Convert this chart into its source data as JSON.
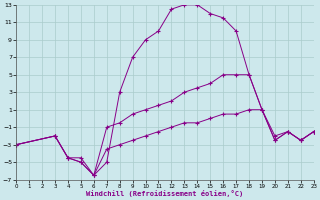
{
  "xlabel": "Windchill (Refroidissement éolien,°C)",
  "background_color": "#cde8ec",
  "grid_color": "#aacccc",
  "line_color": "#880088",
  "xlim": [
    0,
    23
  ],
  "ylim": [
    -7,
    13
  ],
  "xticks": [
    0,
    1,
    2,
    3,
    4,
    5,
    6,
    7,
    8,
    9,
    10,
    11,
    12,
    13,
    14,
    15,
    16,
    17,
    18,
    19,
    20,
    21,
    22,
    23
  ],
  "yticks": [
    -7,
    -5,
    -3,
    -1,
    1,
    3,
    5,
    7,
    9,
    11,
    13
  ],
  "series": [
    {
      "x": [
        0,
        3,
        4,
        5,
        6,
        7,
        8,
        9,
        10,
        11,
        12,
        13,
        14,
        15,
        16,
        17,
        18,
        19,
        20,
        21,
        22,
        23
      ],
      "y": [
        -3,
        -2,
        -4.5,
        -5,
        -6.5,
        -5,
        3,
        7,
        9,
        10,
        12.5,
        13,
        13,
        12,
        11.5,
        10,
        5,
        1,
        -2.5,
        -1.5,
        -2.5,
        -1.5
      ]
    },
    {
      "x": [
        0,
        3,
        4,
        5,
        6,
        7,
        8,
        9,
        10,
        11,
        12,
        13,
        14,
        15,
        16,
        17,
        18,
        19,
        20,
        21,
        22,
        23
      ],
      "y": [
        -3,
        -2,
        -4.5,
        -5,
        -6.5,
        -1,
        -0.5,
        0.5,
        1,
        1.5,
        2,
        3,
        3.5,
        4,
        5,
        5,
        5,
        1,
        -2.5,
        -1.5,
        -2.5,
        -1.5
      ]
    },
    {
      "x": [
        0,
        3,
        4,
        5,
        6,
        7,
        8,
        9,
        10,
        11,
        12,
        13,
        14,
        15,
        16,
        17,
        18,
        19,
        20,
        21,
        22,
        23
      ],
      "y": [
        -3,
        -2,
        -4.5,
        -4.5,
        -6.5,
        -3.5,
        -3,
        -2.5,
        -2,
        -1.5,
        -1,
        -0.5,
        -0.5,
        0,
        0.5,
        0.5,
        1,
        1,
        -2,
        -1.5,
        -2.5,
        -1.5
      ]
    }
  ]
}
